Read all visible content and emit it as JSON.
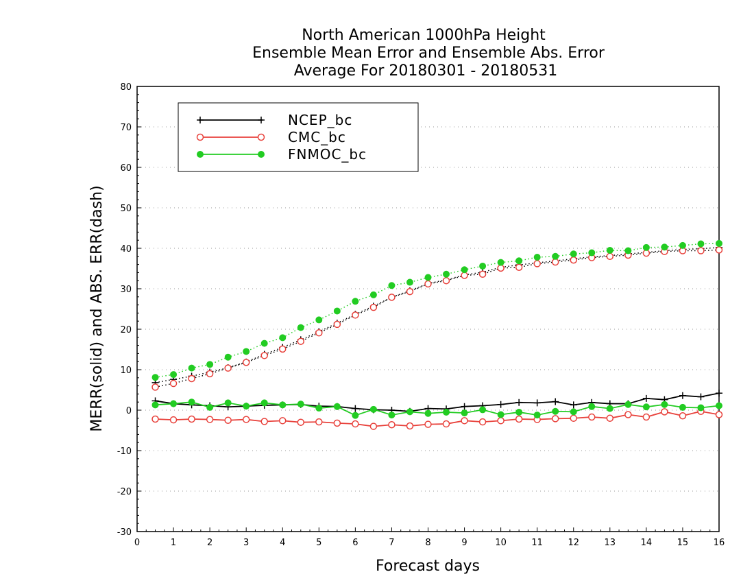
{
  "chart_data": {
    "type": "line",
    "title_lines": [
      "North American 1000hPa Height",
      "Ensemble Mean Error and Ensemble Abs. Error",
      "Average For 20180301 - 20180531"
    ],
    "xlabel": "Forecast days",
    "ylabel": "MERR(solid) and ABS. ERR(dash)",
    "xlim": [
      0,
      16
    ],
    "ylim": [
      -30,
      80
    ],
    "x_ticks": [
      0,
      1,
      2,
      3,
      4,
      5,
      6,
      7,
      8,
      9,
      10,
      11,
      12,
      13,
      14,
      15,
      16
    ],
    "y_ticks": [
      -30,
      -20,
      -10,
      0,
      10,
      20,
      30,
      40,
      50,
      60,
      70,
      80
    ],
    "grid": "horizontal dotted",
    "legend_position": "top-left",
    "x": [
      0.5,
      1,
      1.5,
      2,
      2.5,
      3,
      3.5,
      4,
      4.5,
      5,
      5.5,
      6,
      6.5,
      7,
      7.5,
      8,
      8.5,
      9,
      9.5,
      10,
      10.5,
      11,
      11.5,
      12,
      12.5,
      13,
      13.5,
      14,
      14.5,
      15,
      15.5,
      16
    ],
    "series": [
      {
        "name": "NCEP_bc",
        "color": "#000000",
        "marker": "plus",
        "merr": [
          2.3,
          1.6,
          1.3,
          1.1,
          0.8,
          1.0,
          1.2,
          1.3,
          1.4,
          1.0,
          0.9,
          0.4,
          0.1,
          0.0,
          -0.3,
          0.4,
          0.3,
          0.9,
          1.1,
          1.4,
          1.9,
          1.8,
          2.1,
          1.3,
          1.9,
          1.6,
          1.6,
          2.9,
          2.6,
          3.6,
          3.3,
          4.2
        ],
        "abs_err": [
          6.8,
          7.6,
          8.4,
          9.4,
          10.5,
          11.9,
          13.8,
          15.5,
          17.4,
          19.4,
          21.5,
          23.7,
          25.7,
          27.9,
          29.5,
          31.3,
          32.2,
          33.4,
          34.1,
          35.3,
          35.9,
          36.4,
          36.9,
          37.4,
          37.9,
          38.2,
          38.6,
          39.0,
          39.4,
          39.7,
          39.9,
          40.2
        ]
      },
      {
        "name": "CMC_bc",
        "color": "#e8413b",
        "marker": "open-circle",
        "merr": [
          -2.2,
          -2.4,
          -2.2,
          -2.3,
          -2.5,
          -2.3,
          -2.8,
          -2.6,
          -3.0,
          -2.9,
          -3.2,
          -3.4,
          -4.0,
          -3.6,
          -3.9,
          -3.5,
          -3.4,
          -2.6,
          -2.9,
          -2.6,
          -2.2,
          -2.3,
          -2.1,
          -2.0,
          -1.7,
          -2.0,
          -1.1,
          -1.7,
          -0.4,
          -1.4,
          -0.3,
          -1.1
        ],
        "abs_err": [
          5.7,
          6.6,
          7.8,
          9.0,
          10.4,
          11.8,
          13.5,
          15.1,
          17.0,
          19.1,
          21.2,
          23.5,
          25.4,
          27.9,
          29.3,
          31.2,
          32.0,
          33.3,
          33.6,
          35.1,
          35.3,
          36.2,
          36.6,
          37.1,
          37.7,
          38.0,
          38.3,
          38.8,
          39.2,
          39.4,
          39.4,
          39.6
        ]
      },
      {
        "name": "FNMOC_bc",
        "color": "#22cc22",
        "marker": "filled-circle",
        "merr": [
          1.3,
          1.6,
          2.0,
          0.7,
          1.8,
          1.0,
          1.8,
          1.3,
          1.5,
          0.5,
          0.9,
          -1.3,
          0.2,
          -1.2,
          -0.4,
          -0.8,
          -0.5,
          -0.7,
          0.1,
          -1.1,
          -0.5,
          -1.2,
          -0.3,
          -0.4,
          0.9,
          0.4,
          1.4,
          0.8,
          1.4,
          0.7,
          0.6,
          1.1
        ],
        "abs_err": [
          8.1,
          8.8,
          10.4,
          11.3,
          13.1,
          14.5,
          16.5,
          17.9,
          20.4,
          22.3,
          24.5,
          26.9,
          28.5,
          30.8,
          31.6,
          32.8,
          33.6,
          34.7,
          35.6,
          36.5,
          36.9,
          37.8,
          38.0,
          38.6,
          38.9,
          39.5,
          39.4,
          40.2,
          40.3,
          40.7,
          41.1,
          41.2
        ]
      }
    ]
  }
}
